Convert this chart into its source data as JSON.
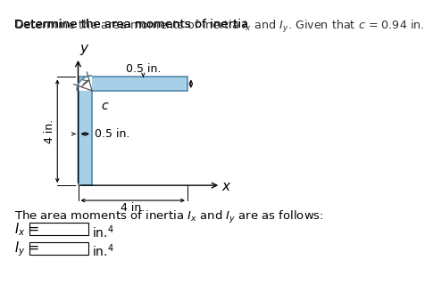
{
  "title_plain": "Determine the area moments of inertia ",
  "title_Ix": "I",
  "title_x": "x",
  "title_mid": " and ",
  "title_Iy": "I",
  "title_y": "y",
  "title_end": " Given that c = 0.94 in.",
  "shape_color": "#a8cfe8",
  "shape_edge_color": "#5588aa",
  "bg_color": "#ffffff",
  "text_color": "#000000",
  "body_text": "The area moments of inertia ",
  "label_c": "c",
  "label_x": "x",
  "label_y": "y",
  "dim_4in_bottom": "4 in.",
  "dim_05in_top": "0.5 in.",
  "dim_05in_side": "0.5 in.",
  "dim_4in_left": "4 in."
}
